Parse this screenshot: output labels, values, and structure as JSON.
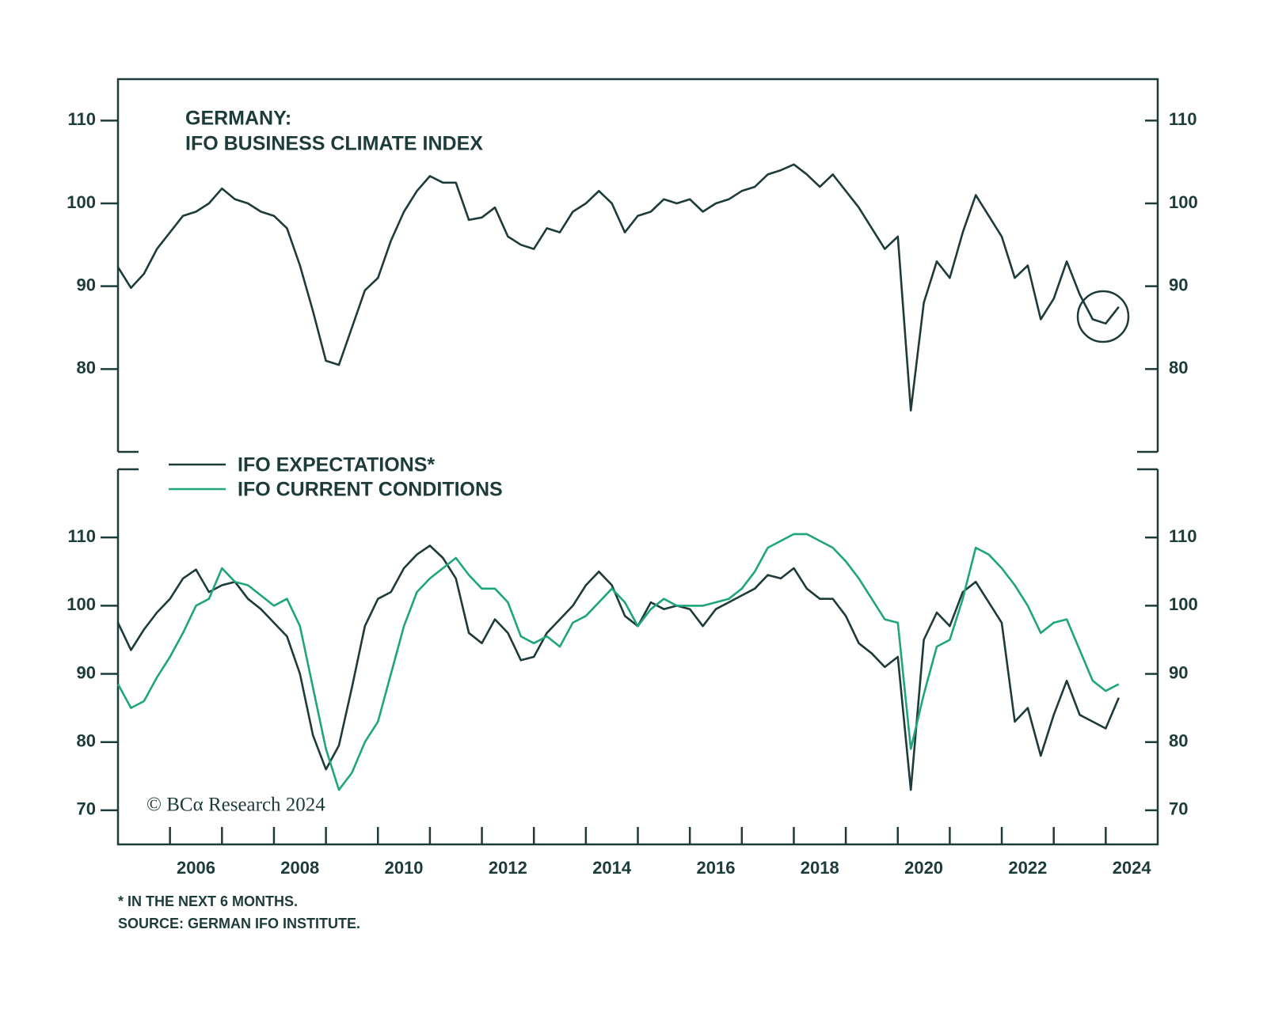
{
  "chart_data": [
    {
      "type": "line",
      "title": "GERMANY:",
      "subtitle": "IFO BUSINESS CLIMATE INDEX",
      "x": [
        2005,
        2005.25,
        2005.5,
        2005.75,
        2006,
        2006.25,
        2006.5,
        2006.75,
        2007,
        2007.25,
        2007.5,
        2007.75,
        2008,
        2008.25,
        2008.5,
        2008.75,
        2009,
        2009.25,
        2009.5,
        2009.75,
        2010,
        2010.25,
        2010.5,
        2010.75,
        2011,
        2011.25,
        2011.5,
        2011.75,
        2012,
        2012.25,
        2012.5,
        2012.75,
        2013,
        2013.25,
        2013.5,
        2013.75,
        2014,
        2014.25,
        2014.5,
        2014.75,
        2015,
        2015.25,
        2015.5,
        2015.75,
        2016,
        2016.25,
        2016.5,
        2016.75,
        2017,
        2017.25,
        2017.5,
        2017.75,
        2018,
        2018.25,
        2018.5,
        2018.75,
        2019,
        2019.25,
        2019.5,
        2019.75,
        2020,
        2020.25,
        2020.5,
        2020.75,
        2021,
        2021.25,
        2021.5,
        2021.75,
        2022,
        2022.25,
        2022.5,
        2022.75,
        2023,
        2023.25,
        2023.5,
        2023.75,
        2024,
        2024.25
      ],
      "series": [
        {
          "name": null,
          "color": "#1d3b3b",
          "values": [
            92.3,
            89.8,
            91.5,
            94.5,
            96.5,
            98.5,
            99,
            100,
            101.8,
            100.5,
            100,
            99,
            98.5,
            97,
            92.5,
            87,
            81,
            80.5,
            85,
            89.5,
            91,
            95.5,
            99,
            101.5,
            103.3,
            102.5,
            102.5,
            98,
            98.3,
            99.5,
            96,
            95,
            94.5,
            97,
            96.5,
            99,
            100,
            101.5,
            100,
            96.5,
            98.5,
            99,
            100.5,
            100,
            100.5,
            99,
            100,
            100.5,
            101.5,
            102,
            103.5,
            104,
            104.7,
            103.5,
            102,
            103.5,
            101.5,
            99.5,
            97,
            94.5,
            96,
            75,
            88,
            93,
            91,
            96.5,
            101,
            98.5,
            96,
            91,
            92.5,
            86,
            88.5,
            93,
            89,
            86,
            85.5,
            87.5
          ]
        }
      ],
      "xlim": [
        2005,
        2025
      ],
      "ylim": [
        70,
        115
      ],
      "yticks": [
        80,
        90,
        100,
        110
      ]
    },
    {
      "type": "line",
      "x": [
        2005,
        2005.25,
        2005.5,
        2005.75,
        2006,
        2006.25,
        2006.5,
        2006.75,
        2007,
        2007.25,
        2007.5,
        2007.75,
        2008,
        2008.25,
        2008.5,
        2008.75,
        2009,
        2009.25,
        2009.5,
        2009.75,
        2010,
        2010.25,
        2010.5,
        2010.75,
        2011,
        2011.25,
        2011.5,
        2011.75,
        2012,
        2012.25,
        2012.5,
        2012.75,
        2013,
        2013.25,
        2013.5,
        2013.75,
        2014,
        2014.25,
        2014.5,
        2014.75,
        2015,
        2015.25,
        2015.5,
        2015.75,
        2016,
        2016.25,
        2016.5,
        2016.75,
        2017,
        2017.25,
        2017.5,
        2017.75,
        2018,
        2018.25,
        2018.5,
        2018.75,
        2019,
        2019.25,
        2019.5,
        2019.75,
        2020,
        2020.25,
        2020.5,
        2020.75,
        2021,
        2021.25,
        2021.5,
        2021.75,
        2022,
        2022.25,
        2022.5,
        2022.75,
        2023,
        2023.25,
        2023.5,
        2023.75,
        2024,
        2024.25
      ],
      "series": [
        {
          "name": "IFO EXPECTATIONS*",
          "color": "#1d3b3b",
          "values": [
            97.5,
            93.5,
            96.5,
            99,
            101,
            104,
            105.3,
            102,
            103,
            103.5,
            101,
            99.5,
            97.5,
            95.5,
            90,
            81,
            76,
            79.5,
            88,
            97,
            101,
            102,
            105.5,
            107.5,
            108.8,
            107,
            104,
            96,
            94.5,
            98,
            96,
            92,
            92.5,
            96,
            98,
            100,
            103,
            105,
            103,
            98.5,
            97,
            100.5,
            99.5,
            100,
            99.5,
            97,
            99.5,
            100.5,
            101.5,
            102.5,
            104.5,
            104,
            105.5,
            102.5,
            101,
            101,
            98.5,
            94.5,
            93,
            91,
            92.5,
            73,
            95,
            99,
            97,
            102,
            103.5,
            100.5,
            97.5,
            83,
            85,
            78,
            84,
            89,
            84,
            83,
            82,
            86.5
          ]
        },
        {
          "name": "IFO CURRENT CONDITIONS",
          "color": "#1fa57a",
          "values": [
            88.5,
            85,
            86,
            89.5,
            92.5,
            96,
            100,
            101,
            105.5,
            103.5,
            103,
            101.5,
            100,
            101,
            97,
            88,
            79,
            73,
            75.5,
            80,
            83,
            90,
            97,
            102,
            104,
            105.5,
            107,
            104.5,
            102.5,
            102.5,
            100.5,
            95.5,
            94.5,
            95.5,
            94,
            97.5,
            98.5,
            100.5,
            102.5,
            100.5,
            97,
            99.5,
            101,
            100,
            100,
            100,
            100.5,
            101,
            102.5,
            105,
            108.5,
            109.5,
            110.5,
            110.5,
            109.5,
            108.5,
            106.5,
            104,
            101,
            98,
            97.5,
            79,
            87,
            94,
            95,
            101,
            108.5,
            107.5,
            105.5,
            103,
            100,
            96,
            97.5,
            98,
            93.5,
            89,
            87.5,
            88.5
          ]
        }
      ],
      "xlim": [
        2005,
        2025
      ],
      "ylim": [
        65,
        120
      ],
      "yticks": [
        70,
        80,
        90,
        100,
        110
      ],
      "xtick_marks": [
        2006,
        2007,
        2008,
        2009,
        2010,
        2011,
        2012,
        2013,
        2014,
        2015,
        2016,
        2017,
        2018,
        2019,
        2020,
        2021,
        2022,
        2023,
        2024
      ],
      "xticks": [
        {
          "value": 2006.5,
          "label": "2006"
        },
        {
          "value": 2008.5,
          "label": "2008"
        },
        {
          "value": 2010.5,
          "label": "2010"
        },
        {
          "value": 2012.5,
          "label": "2012"
        },
        {
          "value": 2014.5,
          "label": "2014"
        },
        {
          "value": 2016.5,
          "label": "2016"
        },
        {
          "value": 2018.5,
          "label": "2018"
        },
        {
          "value": 2020.5,
          "label": "2020"
        },
        {
          "value": 2022.5,
          "label": "2022"
        },
        {
          "value": 2024.5,
          "label": "2024"
        }
      ]
    }
  ],
  "watermark": "© BCα Research 2024",
  "footnotes": [
    "* IN THE NEXT 6 MONTHS.",
    "SOURCE: GERMAN IFO INSTITUTE."
  ]
}
